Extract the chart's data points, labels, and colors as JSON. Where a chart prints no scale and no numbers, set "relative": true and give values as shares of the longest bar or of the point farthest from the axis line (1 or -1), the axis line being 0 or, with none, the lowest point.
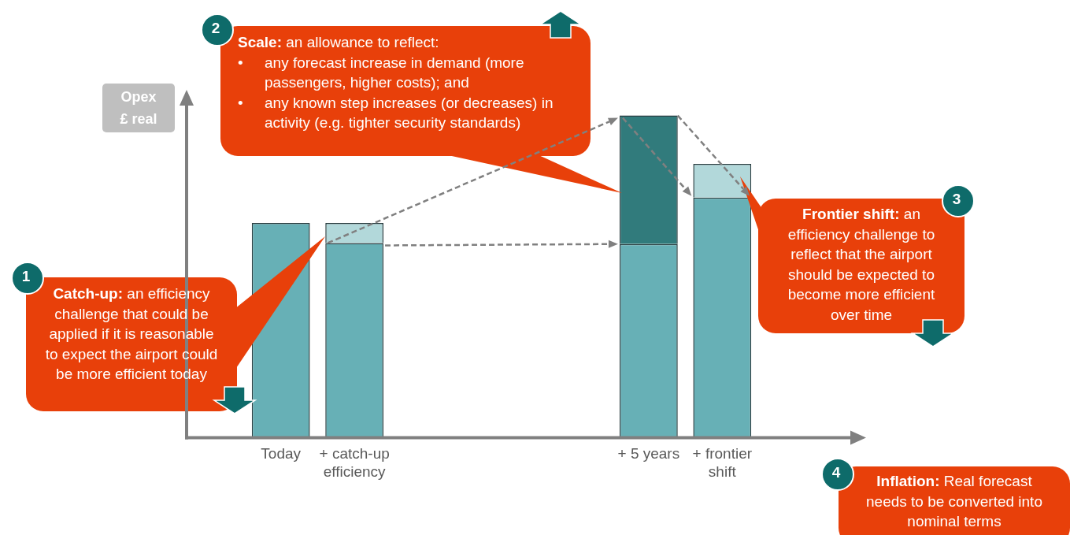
{
  "chart_data": {
    "type": "bar",
    "relative": true,
    "stacked": true,
    "categories": [
      "Today",
      "+ catch-up efficiency",
      null,
      null,
      null,
      "+ 5 years",
      "+ frontier shift"
    ],
    "series": [
      {
        "color": "#67b0b6",
        "values": [
          0.666,
          0.604,
          null,
          null,
          null,
          0.601,
          0.745
        ]
      },
      {
        "color": "#b2d8da",
        "values": [
          null,
          0.062,
          null,
          null,
          null,
          null,
          0.105
        ]
      },
      {
        "color": "#317b7c",
        "values": [
          null,
          null,
          null,
          null,
          null,
          0.399,
          null
        ]
      }
    ],
    "annotations": [
      "Catch-up: an efficiency challenge that could be applied if it is reasonable to expect the airport could be more efficient today",
      "1",
      "Scale: an allowance to reflect:\n• any forecast increase in demand (more passengers, higher costs); and\n• any known step increases (or decreases) in activity (e.g. tighter security standards)",
      "2",
      "Frontier shift: an efficiency challenge to reflect that the airport should be expected to become more efficient over time",
      "3",
      "Inflation: Real forecast needs to be converted into nominal terms",
      "4",
      "Opex £ real"
    ]
  }
}
